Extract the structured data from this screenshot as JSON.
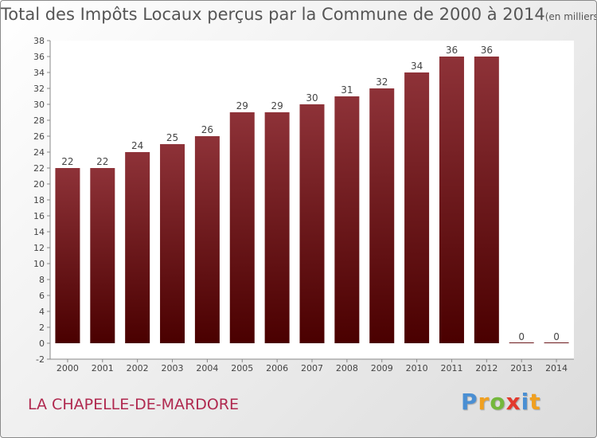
{
  "title": "Total des Impôts Locaux perçus par la Commune de 2000 à 2014",
  "unit_note": "(en milliers d'€)",
  "commune": "LA CHAPELLE-DE-MARDORE",
  "logo_text": "Proxiti",
  "colors": {
    "bar_top": "#8e3238",
    "bar_bottom": "#4a0000",
    "title": "#555555",
    "commune": "#b0294f"
  },
  "chart_data": {
    "type": "bar",
    "title": "Total des Impôts Locaux perçus par la Commune de 2000 à 2014",
    "xlabel": "",
    "ylabel": "",
    "categories": [
      "2000",
      "2001",
      "2002",
      "2003",
      "2004",
      "2005",
      "2006",
      "2007",
      "2008",
      "2009",
      "2010",
      "2011",
      "2012",
      "2013",
      "2014"
    ],
    "values": [
      22,
      22,
      24,
      25,
      26,
      29,
      29,
      30,
      31,
      32,
      34,
      36,
      36,
      0,
      0
    ],
    "ylim": [
      -2,
      38
    ],
    "ytick_step": 2,
    "grid": false
  }
}
